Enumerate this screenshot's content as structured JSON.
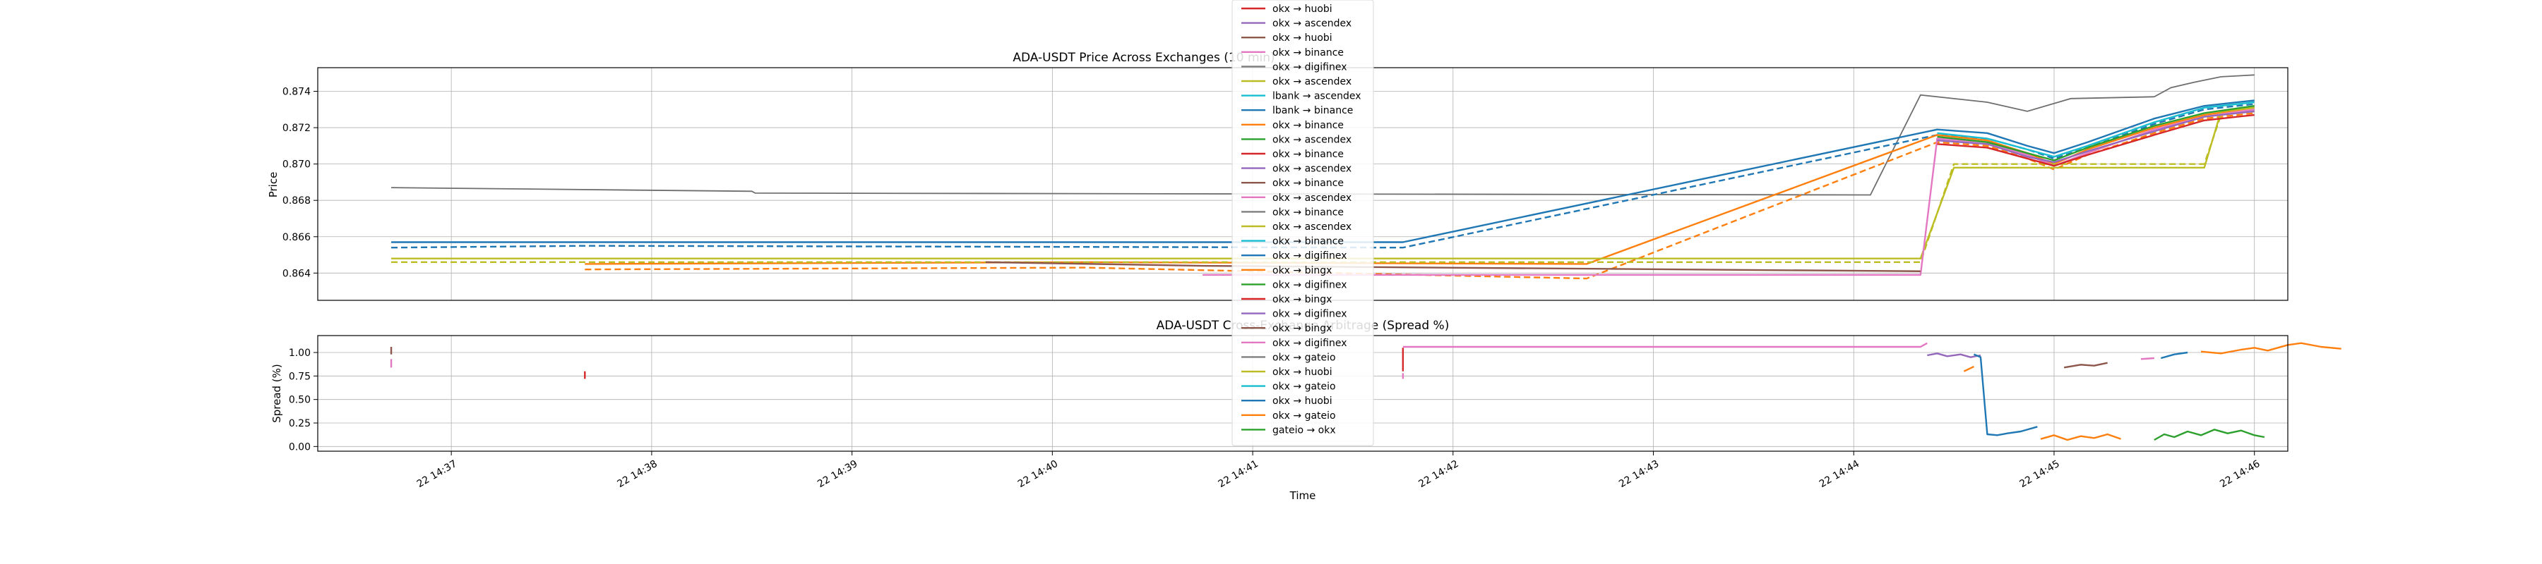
{
  "chart_data": [
    {
      "type": "line",
      "title": "ADA-USDT Price Across Exchanges (10 min)",
      "ylabel": "Price",
      "ylim": [
        0.8625,
        0.8753
      ],
      "yticks": [
        "0.864",
        "0.866",
        "0.868",
        "0.870",
        "0.872",
        "0.874"
      ],
      "grid": true,
      "x_note": "x values are times on 22 (hh:mm)",
      "xlim": [
        "14:36:20",
        "14:46:10"
      ],
      "reference_series": {
        "color": "#6e6e6e",
        "points": [
          [
            "14:36:42",
            0.8687
          ],
          [
            "14:38:30",
            0.8685
          ],
          [
            "14:38:31",
            0.8684
          ],
          [
            "14:44:05",
            0.8683
          ],
          [
            "14:44:20",
            0.8738
          ],
          [
            "14:44:40",
            0.8734
          ],
          [
            "14:44:52",
            0.8729
          ],
          [
            "14:45:05",
            0.8736
          ],
          [
            "14:45:30",
            0.8737
          ],
          [
            "14:45:35",
            0.8742
          ],
          [
            "14:45:42",
            0.8745
          ],
          [
            "14:45:50",
            0.8748
          ],
          [
            "14:46:00",
            0.8749
          ]
        ]
      },
      "series_groups": [
        {
          "color": "#1f77b4",
          "dash": false,
          "points": [
            [
              "14:36:42",
              0.8657
            ],
            [
              "14:37:40",
              0.8657
            ],
            [
              "14:41:45",
              0.8657
            ],
            [
              "14:44:25",
              0.8719
            ],
            [
              "14:44:40",
              0.8717
            ],
            [
              "14:44:52",
              0.871
            ],
            [
              "14:45:00",
              0.8706
            ],
            [
              "14:45:10",
              0.8712
            ],
            [
              "14:45:30",
              0.8725
            ],
            [
              "14:45:45",
              0.8732
            ],
            [
              "14:46:00",
              0.8735
            ]
          ]
        },
        {
          "color": "#1f77b4",
          "dash": true,
          "points": [
            [
              "14:36:42",
              0.8654
            ],
            [
              "14:37:40",
              0.8655
            ],
            [
              "14:41:45",
              0.8654
            ],
            [
              "14:44:25",
              0.8716
            ],
            [
              "14:44:40",
              0.8714
            ],
            [
              "14:44:52",
              0.8708
            ],
            [
              "14:45:00",
              0.8703
            ],
            [
              "14:45:10",
              0.8709
            ],
            [
              "14:45:30",
              0.8722
            ],
            [
              "14:45:45",
              0.873
            ],
            [
              "14:46:00",
              0.8733
            ]
          ]
        },
        {
          "color": "#ff7f0e",
          "dash": false,
          "points": [
            [
              "14:37:40",
              0.8645
            ],
            [
              "14:40:10",
              0.8646
            ],
            [
              "14:42:40",
              0.8645
            ],
            [
              "14:44:25",
              0.8716
            ],
            [
              "14:44:40",
              0.8713
            ],
            [
              "14:44:52",
              0.8706
            ],
            [
              "14:45:00",
              0.87
            ],
            [
              "14:45:10",
              0.8708
            ],
            [
              "14:45:30",
              0.872
            ],
            [
              "14:45:45",
              0.8727
            ],
            [
              "14:46:00",
              0.8731
            ]
          ]
        },
        {
          "color": "#ff7f0e",
          "dash": true,
          "points": [
            [
              "14:37:40",
              0.8642
            ],
            [
              "14:40:10",
              0.8643
            ],
            [
              "14:42:40",
              0.8637
            ],
            [
              "14:44:25",
              0.8712
            ],
            [
              "14:44:40",
              0.871
            ],
            [
              "14:44:52",
              0.8703
            ],
            [
              "14:45:00",
              0.8697
            ],
            [
              "14:45:10",
              0.8705
            ],
            [
              "14:45:30",
              0.8717
            ],
            [
              "14:45:45",
              0.8725
            ],
            [
              "14:46:00",
              0.8728
            ]
          ]
        },
        {
          "color": "#bcbd22",
          "dash": false,
          "points": [
            [
              "14:36:42",
              0.8648
            ],
            [
              "14:44:20",
              0.8648
            ],
            [
              "14:44:30",
              0.8698
            ],
            [
              "14:45:45",
              0.8698
            ],
            [
              "14:45:50",
              0.8729
            ],
            [
              "14:46:00",
              0.8731
            ]
          ]
        },
        {
          "color": "#bcbd22",
          "dash": true,
          "points": [
            [
              "14:36:42",
              0.8646
            ],
            [
              "14:44:20",
              0.8646
            ],
            [
              "14:44:30",
              0.87
            ],
            [
              "14:45:45",
              0.87
            ],
            [
              "14:45:50",
              0.8727
            ],
            [
              "14:46:00",
              0.8729
            ]
          ]
        },
        {
          "color": "#e377c2",
          "dash": false,
          "points": [
            [
              "14:40:45",
              0.8639
            ],
            [
              "14:44:20",
              0.8639
            ],
            [
              "14:44:25",
              0.8714
            ],
            [
              "14:44:40",
              0.8712
            ],
            [
              "14:44:52",
              0.8705
            ],
            [
              "14:45:00",
              0.8699
            ],
            [
              "14:45:10",
              0.8706
            ],
            [
              "14:45:30",
              0.8719
            ],
            [
              "14:45:45",
              0.8726
            ],
            [
              "14:46:00",
              0.873
            ]
          ]
        },
        {
          "color": "#8c564b",
          "dash": false,
          "points": [
            [
              "14:39:40",
              0.8646
            ],
            [
              "14:40:45",
              0.8644
            ],
            [
              "14:44:20",
              0.8641
            ]
          ]
        },
        {
          "color": "#9467bd",
          "dash": false,
          "points": [
            [
              "14:44:25",
              0.8713
            ],
            [
              "14:44:40",
              0.8711
            ],
            [
              "14:44:52",
              0.8704
            ],
            [
              "14:45:00",
              0.8701
            ],
            [
              "14:45:10",
              0.8707
            ],
            [
              "14:45:30",
              0.8718
            ],
            [
              "14:45:45",
              0.8726
            ],
            [
              "14:46:00",
              0.8729
            ]
          ]
        },
        {
          "color": "#2ca02c",
          "dash": false,
          "points": [
            [
              "14:44:25",
              0.8715
            ],
            [
              "14:44:40",
              0.8712
            ],
            [
              "14:44:52",
              0.8706
            ],
            [
              "14:45:00",
              0.8702
            ],
            [
              "14:45:10",
              0.8709
            ],
            [
              "14:45:30",
              0.8721
            ],
            [
              "14:45:45",
              0.8728
            ],
            [
              "14:46:00",
              0.8732
            ]
          ]
        },
        {
          "color": "#17becf",
          "dash": false,
          "points": [
            [
              "14:44:25",
              0.8717
            ],
            [
              "14:44:40",
              0.8714
            ],
            [
              "14:44:52",
              0.8708
            ],
            [
              "14:45:00",
              0.8704
            ],
            [
              "14:45:10",
              0.871
            ],
            [
              "14:45:30",
              0.8723
            ],
            [
              "14:45:45",
              0.8731
            ],
            [
              "14:46:00",
              0.8734
            ]
          ]
        },
        {
          "color": "#d62728",
          "dash": false,
          "points": [
            [
              "14:44:25",
              0.8711
            ],
            [
              "14:44:40",
              0.8709
            ],
            [
              "14:44:52",
              0.8703
            ],
            [
              "14:45:00",
              0.8699
            ],
            [
              "14:45:10",
              0.8705
            ],
            [
              "14:45:30",
              0.8716
            ],
            [
              "14:45:45",
              0.8724
            ],
            [
              "14:46:00",
              0.8727
            ]
          ]
        }
      ]
    },
    {
      "type": "line",
      "title": "ADA-USDT Cross-Exchange Arbitrage (Spread %)",
      "ylabel": "Spread (%)",
      "xlabel": "Time",
      "ylim": [
        -0.05,
        1.18
      ],
      "yticks": [
        "0.00",
        "0.25",
        "0.50",
        "0.75",
        "1.00"
      ],
      "xticks": [
        "22 14:37",
        "22 14:38",
        "22 14:39",
        "22 14:40",
        "22 14:41",
        "22 14:42",
        "22 14:43",
        "22 14:44",
        "22 14:45",
        "22 14:46"
      ],
      "grid": true,
      "series_groups": [
        {
          "color": "#8c564b",
          "points": [
            [
              "14:36:42",
              1.06
            ],
            [
              "14:36:42",
              0.98
            ]
          ]
        },
        {
          "color": "#e377c2",
          "points": [
            [
              "14:36:42",
              0.93
            ],
            [
              "14:36:42",
              0.84
            ]
          ]
        },
        {
          "color": "#d62728",
          "points": [
            [
              "14:37:40",
              0.8
            ],
            [
              "14:37:40",
              0.72
            ]
          ]
        },
        {
          "color": "#e377c2",
          "points": [
            [
              "14:41:45",
              0.78
            ],
            [
              "14:41:45",
              0.72
            ]
          ]
        },
        {
          "color": "#d62728",
          "points": [
            [
              "14:41:45",
              1.05
            ],
            [
              "14:41:45",
              0.8
            ]
          ]
        },
        {
          "color": "#e377c2",
          "points": [
            [
              "14:41:45",
              1.06
            ],
            [
              "14:44:20",
              1.06
            ],
            [
              "14:44:22",
              1.1
            ]
          ]
        },
        {
          "color": "#9467bd",
          "points": [
            [
              "14:44:22",
              0.97
            ],
            [
              "14:44:25",
              0.99
            ],
            [
              "14:44:28",
              0.96
            ],
            [
              "14:44:32",
              0.98
            ],
            [
              "14:44:35",
              0.95
            ],
            [
              "14:44:38",
              0.97
            ]
          ]
        },
        {
          "color": "#1f77b4",
          "points": [
            [
              "14:44:36",
              0.98
            ],
            [
              "14:44:38",
              0.95
            ],
            [
              "14:44:40",
              0.13
            ],
            [
              "14:44:43",
              0.12
            ],
            [
              "14:44:46",
              0.14
            ],
            [
              "14:44:50",
              0.16
            ],
            [
              "14:44:55",
              0.21
            ]
          ]
        },
        {
          "color": "#ff7f0e",
          "points": [
            [
              "14:44:33",
              0.8
            ],
            [
              "14:44:36",
              0.85
            ]
          ]
        },
        {
          "color": "#ff7f0e",
          "points": [
            [
              "14:44:56",
              0.08
            ],
            [
              "14:45:00",
              0.12
            ],
            [
              "14:45:04",
              0.07
            ],
            [
              "14:45:08",
              0.11
            ],
            [
              "14:45:12",
              0.09
            ],
            [
              "14:45:16",
              0.13
            ],
            [
              "14:45:20",
              0.08
            ]
          ]
        },
        {
          "color": "#8c564b",
          "points": [
            [
              "14:45:03",
              0.84
            ],
            [
              "14:45:08",
              0.87
            ],
            [
              "14:45:12",
              0.86
            ],
            [
              "14:45:16",
              0.89
            ]
          ]
        },
        {
          "color": "#e377c2",
          "points": [
            [
              "14:45:26",
              0.93
            ],
            [
              "14:45:30",
              0.94
            ]
          ]
        },
        {
          "color": "#2ca02c",
          "points": [
            [
              "14:45:30",
              0.07
            ],
            [
              "14:45:33",
              0.13
            ],
            [
              "14:45:36",
              0.1
            ],
            [
              "14:45:40",
              0.16
            ],
            [
              "14:45:44",
              0.12
            ],
            [
              "14:45:48",
              0.18
            ],
            [
              "14:45:52",
              0.14
            ],
            [
              "14:45:56",
              0.17
            ],
            [
              "14:46:00",
              0.12
            ],
            [
              "14:46:03",
              0.1
            ]
          ]
        },
        {
          "color": "#1f77b4",
          "points": [
            [
              "14:45:32",
              0.94
            ],
            [
              "14:45:36",
              0.98
            ],
            [
              "14:45:40",
              1.0
            ]
          ]
        },
        {
          "color": "#ff7f0e",
          "points": [
            [
              "14:45:44",
              1.01
            ],
            [
              "14:45:50",
              0.99
            ],
            [
              "14:45:56",
              1.03
            ],
            [
              "14:46:00",
              1.05
            ],
            [
              "14:46:04",
              1.02
            ],
            [
              "14:46:10",
              1.08
            ],
            [
              "14:46:14",
              1.1
            ],
            [
              "14:46:20",
              1.06
            ],
            [
              "14:46:26",
              1.04
            ]
          ]
        }
      ]
    }
  ],
  "legend": {
    "placement": "top-center",
    "entries": [
      {
        "label": "okx → huobi",
        "color": "#d62728"
      },
      {
        "label": "okx → ascendex",
        "color": "#9467bd"
      },
      {
        "label": "okx → huobi",
        "color": "#8c564b"
      },
      {
        "label": "okx → binance",
        "color": "#e377c2"
      },
      {
        "label": "okx → digifinex",
        "color": "#7f7f7f"
      },
      {
        "label": "okx → ascendex",
        "color": "#bcbd22"
      },
      {
        "label": "lbank → ascendex",
        "color": "#17becf"
      },
      {
        "label": "lbank → binance",
        "color": "#1f77b4"
      },
      {
        "label": "okx → binance",
        "color": "#ff7f0e"
      },
      {
        "label": "okx → ascendex",
        "color": "#2ca02c"
      },
      {
        "label": "okx → binance",
        "color": "#d62728"
      },
      {
        "label": "okx → ascendex",
        "color": "#9467bd"
      },
      {
        "label": "okx → binance",
        "color": "#8c564b"
      },
      {
        "label": "okx → ascendex",
        "color": "#e377c2"
      },
      {
        "label": "okx → binance",
        "color": "#7f7f7f"
      },
      {
        "label": "okx → ascendex",
        "color": "#bcbd22"
      },
      {
        "label": "okx → binance",
        "color": "#17becf"
      },
      {
        "label": "okx → digifinex",
        "color": "#1f77b4"
      },
      {
        "label": "okx → bingx",
        "color": "#ff7f0e"
      },
      {
        "label": "okx → digifinex",
        "color": "#2ca02c"
      },
      {
        "label": "okx → bingx",
        "color": "#d62728"
      },
      {
        "label": "okx → digifinex",
        "color": "#9467bd"
      },
      {
        "label": "okx → bingx",
        "color": "#8c564b"
      },
      {
        "label": "okx → digifinex",
        "color": "#e377c2"
      },
      {
        "label": "okx → gateio",
        "color": "#7f7f7f"
      },
      {
        "label": "okx → huobi",
        "color": "#bcbd22"
      },
      {
        "label": "okx → gateio",
        "color": "#17becf"
      },
      {
        "label": "okx → huobi",
        "color": "#1f77b4"
      },
      {
        "label": "okx → gateio",
        "color": "#ff7f0e"
      },
      {
        "label": "gateio → okx",
        "color": "#2ca02c"
      }
    ]
  }
}
